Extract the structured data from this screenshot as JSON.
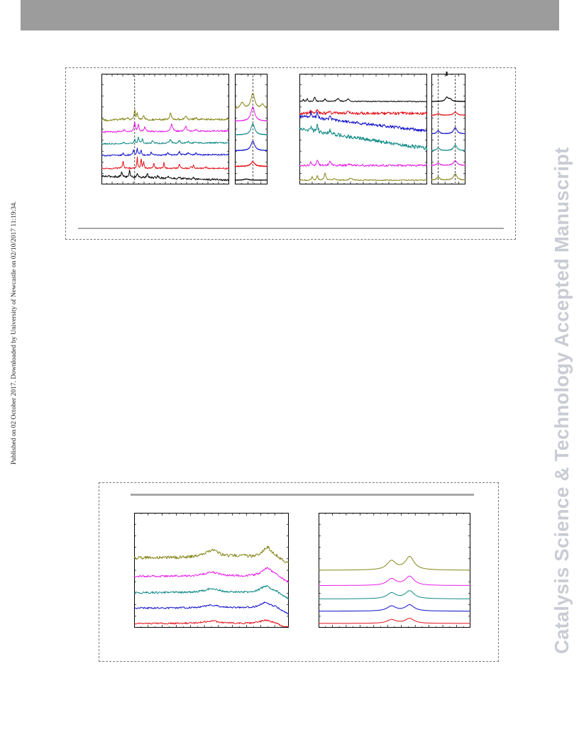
{
  "page": {
    "side_note": "Published on 02 October 2017. Downloaded by University of Newcastle on 02/10/2017 11:19:34.",
    "journal_watermark": "Catalysis Science & Technology Accepted Manuscript"
  },
  "colors": {
    "header_band": "#9c9c9c",
    "watermark": "#c9ccd3",
    "series": [
      "#000000",
      "#e3111a",
      "#1010c8",
      "#108a86",
      "#e61ee6",
      "#86861a"
    ]
  },
  "chart_data": [
    {
      "type": "line",
      "panel": "top-left",
      "series": [
        {
          "color": "#000000",
          "offset": 0.0,
          "base_slope": 0.04,
          "peaks": [
            [
              0.16,
              0.6,
              0.006
            ],
            [
              0.22,
              0.8,
              0.005
            ],
            [
              0.28,
              0.55,
              0.005
            ],
            [
              0.36,
              0.45,
              0.006
            ],
            [
              0.44,
              0.3,
              0.006
            ],
            [
              0.52,
              0.25,
              0.006
            ],
            [
              0.61,
              0.2,
              0.006
            ],
            [
              0.72,
              0.15,
              0.006
            ],
            [
              0.9,
              0.1,
              0.006
            ]
          ],
          "noise": 0.02
        },
        {
          "color": "#e3111a",
          "offset": 0.12,
          "base_slope": 0.0,
          "peaks": [
            [
              0.17,
              0.9,
              0.005
            ],
            [
              0.28,
              1.4,
              0.004
            ],
            [
              0.31,
              1.2,
              0.004
            ],
            [
              0.33,
              0.9,
              0.004
            ],
            [
              0.41,
              0.6,
              0.005
            ],
            [
              0.49,
              0.8,
              0.004
            ],
            [
              0.61,
              0.7,
              0.004
            ],
            [
              0.7,
              0.3,
              0.004
            ],
            [
              0.72,
              0.45,
              0.004
            ],
            [
              0.82,
              0.2,
              0.005
            ]
          ],
          "noise": 0.015
        },
        {
          "color": "#1010c8",
          "offset": 0.26,
          "base_slope": -0.01,
          "peaks": [
            [
              0.17,
              0.25,
              0.006
            ],
            [
              0.25,
              0.6,
              0.006
            ],
            [
              0.28,
              0.9,
              0.005
            ],
            [
              0.31,
              0.6,
              0.005
            ],
            [
              0.39,
              0.35,
              0.006
            ],
            [
              0.52,
              0.3,
              0.008
            ],
            [
              0.61,
              0.4,
              0.008
            ],
            [
              0.68,
              0.25,
              0.008
            ],
            [
              0.74,
              0.2,
              0.007
            ]
          ],
          "noise": 0.015
        },
        {
          "color": "#108a86",
          "offset": 0.38,
          "base_slope": -0.01,
          "peaks": [
            [
              0.17,
              0.2,
              0.006
            ],
            [
              0.26,
              0.5,
              0.006
            ],
            [
              0.29,
              0.8,
              0.005
            ],
            [
              0.32,
              0.6,
              0.005
            ],
            [
              0.4,
              0.3,
              0.006
            ],
            [
              0.54,
              0.45,
              0.008
            ],
            [
              0.61,
              0.3,
              0.008
            ],
            [
              0.68,
              0.2,
              0.008
            ],
            [
              0.74,
              0.18,
              0.007
            ]
          ],
          "noise": 0.015
        },
        {
          "color": "#e61ee6",
          "offset": 0.5,
          "base_slope": -0.01,
          "peaks": [
            [
              0.18,
              0.3,
              0.007
            ],
            [
              0.26,
              1.2,
              0.006
            ],
            [
              0.29,
              0.9,
              0.006
            ],
            [
              0.34,
              0.55,
              0.007
            ],
            [
              0.55,
              0.9,
              0.009
            ],
            [
              0.66,
              0.6,
              0.009
            ],
            [
              0.74,
              0.2,
              0.008
            ]
          ],
          "noise": 0.015
        },
        {
          "color": "#86861a",
          "offset": 0.62,
          "base_slope": -0.01,
          "peaks": [
            [
              0.16,
              0.2,
              0.007
            ],
            [
              0.2,
              0.35,
              0.007
            ],
            [
              0.26,
              1.4,
              0.005
            ],
            [
              0.28,
              0.9,
              0.005
            ],
            [
              0.33,
              0.5,
              0.008
            ],
            [
              0.54,
              0.75,
              0.008
            ],
            [
              0.66,
              0.5,
              0.009
            ],
            [
              0.74,
              0.15,
              0.008
            ]
          ],
          "noise": 0.02
        }
      ],
      "reference_lines": [
        0.26
      ]
    },
    {
      "type": "line",
      "panel": "top-left-inset",
      "series": [
        {
          "color": "#000000",
          "offset": 0.0,
          "base_slope": 0.0,
          "peaks": [
            [
              0.35,
              0.15,
              0.08
            ]
          ],
          "noise": 0.005
        },
        {
          "color": "#e3111a",
          "offset": 0.14,
          "base_slope": 0.0,
          "peaks": [
            [
              0.55,
              0.6,
              0.07
            ]
          ],
          "noise": 0.008
        },
        {
          "color": "#1010c8",
          "offset": 0.3,
          "base_slope": 0.0,
          "peaks": [
            [
              0.55,
              1.2,
              0.07
            ]
          ],
          "noise": 0.005
        },
        {
          "color": "#108a86",
          "offset": 0.46,
          "base_slope": 0.0,
          "peaks": [
            [
              0.55,
              1.4,
              0.07
            ]
          ],
          "noise": 0.005
        },
        {
          "color": "#e61ee6",
          "offset": 0.6,
          "base_slope": 0.0,
          "peaks": [
            [
              0.55,
              1.8,
              0.07
            ]
          ],
          "noise": 0.005
        },
        {
          "color": "#86861a",
          "offset": 0.72,
          "base_slope": 0.0,
          "peaks": [
            [
              0.22,
              0.8,
              0.07
            ],
            [
              0.55,
              2.0,
              0.07
            ],
            [
              0.85,
              0.6,
              0.06
            ]
          ],
          "noise": 0.005
        }
      ],
      "reference_lines": [
        0.55
      ]
    },
    {
      "type": "line",
      "panel": "top-right",
      "series": [
        {
          "color": "#86861a",
          "offset": 0.0,
          "base_slope": 0.0,
          "peaks": [
            [
              0.1,
              0.5,
              0.005
            ],
            [
              0.14,
              0.6,
              0.005
            ],
            [
              0.2,
              0.9,
              0.007
            ],
            [
              0.27,
              0.2,
              0.008
            ],
            [
              0.4,
              0.3,
              0.01
            ]
          ],
          "noise": 0.01
        },
        {
          "color": "#e61ee6",
          "offset": 0.15,
          "base_slope": 0.0,
          "peaks": [
            [
              0.09,
              0.5,
              0.005
            ],
            [
              0.14,
              0.8,
              0.006
            ],
            [
              0.24,
              0.5,
              0.008
            ],
            [
              0.4,
              0.2,
              0.01
            ]
          ],
          "noise": 0.02
        },
        {
          "color": "#108a86",
          "offset": 0.32,
          "base_slope": 0.2,
          "peaks": [
            [
              0.09,
              0.6,
              0.005
            ],
            [
              0.14,
              0.9,
              0.006
            ],
            [
              0.24,
              0.5,
              0.008
            ]
          ],
          "noise": 0.04
        },
        {
          "color": "#1010c8",
          "offset": 0.5,
          "base_slope": 0.15,
          "peaks": [
            [
              0.09,
              0.7,
              0.005
            ],
            [
              0.14,
              0.9,
              0.006
            ],
            [
              0.24,
              0.4,
              0.008
            ]
          ],
          "noise": 0.03
        },
        {
          "color": "#e3111a",
          "offset": 0.68,
          "base_slope": 0.0,
          "peaks": [
            [
              0.09,
              0.4,
              0.005
            ],
            [
              0.14,
              0.5,
              0.006
            ],
            [
              0.24,
              0.2,
              0.008
            ],
            [
              0.38,
              0.15,
              0.01
            ]
          ],
          "noise": 0.03
        },
        {
          "color": "#000000",
          "offset": 0.8,
          "base_slope": 0.0,
          "peaks": [
            [
              0.03,
              0.3,
              0.004
            ],
            [
              0.06,
              0.4,
              0.004
            ],
            [
              0.12,
              0.6,
              0.006
            ],
            [
              0.2,
              0.3,
              0.008
            ],
            [
              0.3,
              0.4,
              0.01
            ],
            [
              0.38,
              0.3,
              0.01
            ]
          ],
          "noise": 0.01
        }
      ],
      "reference_lines": []
    },
    {
      "type": "line",
      "panel": "top-right-inset",
      "series": [
        {
          "color": "#86861a",
          "offset": 0.0,
          "base_slope": 0.0,
          "peaks": [
            [
              0.2,
              0.4,
              0.05
            ],
            [
              0.7,
              0.8,
              0.06
            ]
          ],
          "noise": 0.005
        },
        {
          "color": "#e61ee6",
          "offset": 0.15,
          "base_slope": 0.0,
          "peaks": [
            [
              0.2,
              0.3,
              0.05
            ],
            [
              0.7,
              0.6,
              0.06
            ]
          ],
          "noise": 0.005
        },
        {
          "color": "#108a86",
          "offset": 0.3,
          "base_slope": 0.0,
          "peaks": [
            [
              0.2,
              0.35,
              0.05
            ],
            [
              0.7,
              0.7,
              0.06
            ]
          ],
          "noise": 0.005
        },
        {
          "color": "#1010c8",
          "offset": 0.47,
          "base_slope": 0.0,
          "peaks": [
            [
              0.2,
              0.4,
              0.05
            ],
            [
              0.7,
              0.8,
              0.06
            ]
          ],
          "noise": 0.005
        },
        {
          "color": "#e3111a",
          "offset": 0.66,
          "base_slope": 0.0,
          "peaks": [
            [
              0.2,
              0.2,
              0.05
            ],
            [
              0.7,
              0.4,
              0.06
            ]
          ],
          "noise": 0.005
        },
        {
          "color": "#000000",
          "offset": 0.8,
          "base_slope": 0.0,
          "peaks": [
            [
              0.45,
              0.5,
              0.05
            ],
            [
              0.55,
              0.3,
              0.05
            ]
          ],
          "noise": 0.005
        }
      ],
      "reference_lines": [
        0.2,
        0.7
      ]
    },
    {
      "type": "line",
      "panel": "bottom-left",
      "series": [
        {
          "color": "#e3111a",
          "offset": 0.0,
          "base_slope": 0.0,
          "peaks": [
            [
              0.5,
              0.3,
              0.06
            ],
            [
              0.85,
              0.4,
              0.04
            ]
          ],
          "noise": 0.015,
          "drop_after": 0.92
        },
        {
          "color": "#1010c8",
          "offset": 0.15,
          "base_slope": 0.0,
          "peaks": [
            [
              0.5,
              0.35,
              0.06
            ],
            [
              0.85,
              0.7,
              0.04
            ]
          ],
          "noise": 0.015,
          "drop_after": 0.92
        },
        {
          "color": "#108a86",
          "offset": 0.3,
          "base_slope": 0.0,
          "peaks": [
            [
              0.5,
              0.45,
              0.06
            ],
            [
              0.85,
              0.8,
              0.04
            ]
          ],
          "noise": 0.02,
          "drop_after": 0.92
        },
        {
          "color": "#e61ee6",
          "offset": 0.46,
          "base_slope": 0.0,
          "peaks": [
            [
              0.5,
              0.5,
              0.06
            ],
            [
              0.86,
              1.0,
              0.04
            ]
          ],
          "noise": 0.02,
          "drop_after": 0.92
        },
        {
          "color": "#86861a",
          "offset": 0.64,
          "base_slope": 0.0,
          "peaks": [
            [
              0.5,
              0.9,
              0.06
            ],
            [
              0.68,
              0.2,
              0.05
            ],
            [
              0.86,
              1.3,
              0.035
            ]
          ],
          "noise": 0.03,
          "drop_after": 0.92
        }
      ],
      "reference_lines": []
    },
    {
      "type": "line",
      "panel": "bottom-right",
      "series": [
        {
          "color": "#e3111a",
          "offset": 0.0,
          "base_slope": 0.0,
          "peaks": [
            [
              0.48,
              0.45,
              0.035
            ],
            [
              0.6,
              0.6,
              0.035
            ]
          ],
          "noise": 0.0
        },
        {
          "color": "#1010c8",
          "offset": 0.12,
          "base_slope": 0.0,
          "peaks": [
            [
              0.48,
              0.6,
              0.035
            ],
            [
              0.6,
              0.75,
              0.035
            ]
          ],
          "noise": 0.0
        },
        {
          "color": "#108a86",
          "offset": 0.24,
          "base_slope": 0.0,
          "peaks": [
            [
              0.48,
              0.7,
              0.035
            ],
            [
              0.6,
              0.95,
              0.035
            ]
          ],
          "noise": 0.0
        },
        {
          "color": "#e61ee6",
          "offset": 0.37,
          "base_slope": 0.0,
          "peaks": [
            [
              0.48,
              0.8,
              0.035
            ],
            [
              0.6,
              1.1,
              0.035
            ]
          ],
          "noise": 0.0
        },
        {
          "color": "#86861a",
          "offset": 0.52,
          "base_slope": 0.0,
          "peaks": [
            [
              0.48,
              1.1,
              0.035
            ],
            [
              0.6,
              1.6,
              0.035
            ]
          ],
          "noise": 0.0
        }
      ],
      "reference_lines": []
    }
  ]
}
